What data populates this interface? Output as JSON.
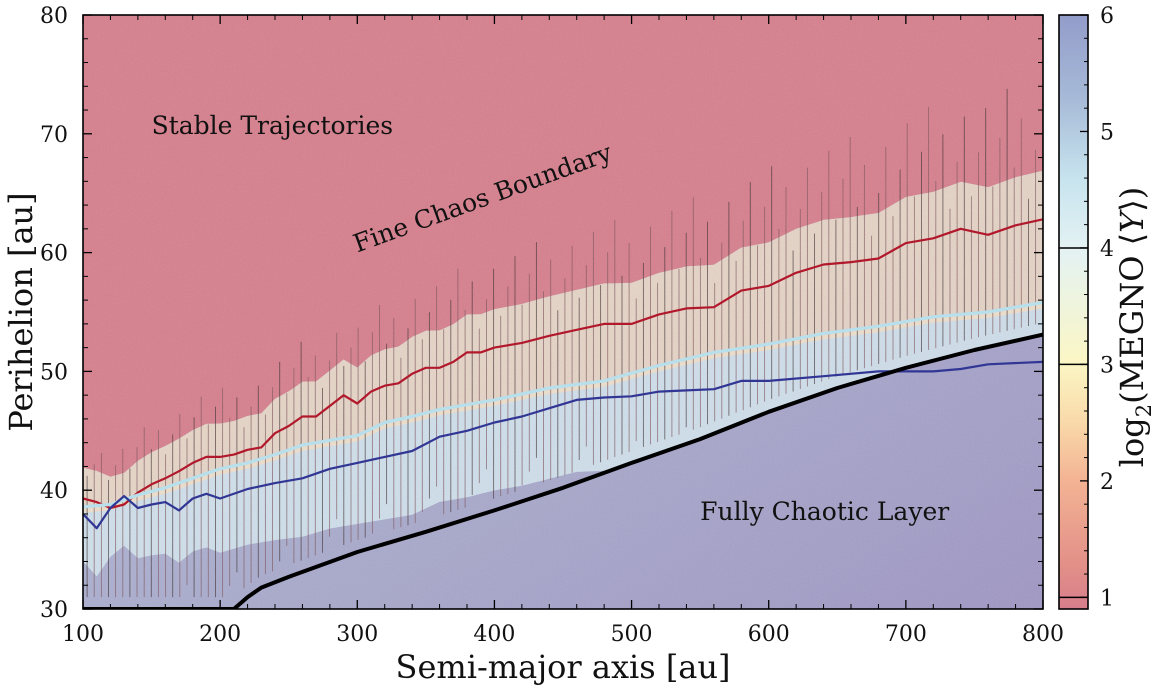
{
  "chart_data": {
    "type": "heatmap",
    "title": "",
    "xlabel": "Semi-major axis [au]",
    "ylabel": "Perihelion [au]",
    "xlim": [
      100,
      800
    ],
    "ylim": [
      30,
      80
    ],
    "x_ticks": [
      100,
      200,
      300,
      400,
      500,
      600,
      700,
      800
    ],
    "y_ticks": [
      30,
      40,
      50,
      60,
      70,
      80
    ],
    "colorbar": {
      "label": "log₂⟨MEGNO ⟨Y⟩⟩",
      "label_parts": {
        "prefix": "log",
        "sub": "2",
        "text": "(MEGNO ⟨",
        "var": "Y",
        "suffix": "⟩)"
      },
      "range": [
        0.9,
        6
      ],
      "ticks": [
        1,
        2,
        3,
        4,
        5,
        6
      ],
      "marked_levels": [
        1,
        3,
        4
      ],
      "colormap_stops": [
        {
          "v": 0.9,
          "color": "#d77e8c"
        },
        {
          "v": 1.3,
          "color": "#e39188"
        },
        {
          "v": 2.0,
          "color": "#f3b394"
        },
        {
          "v": 2.5,
          "color": "#f9d9a9"
        },
        {
          "v": 3.0,
          "color": "#fbf6c4"
        },
        {
          "v": 4.0,
          "color": "#e3f2f4"
        },
        {
          "v": 4.6,
          "color": "#c7e3ee"
        },
        {
          "v": 5.3,
          "color": "#a6b9d7"
        },
        {
          "v": 6.0,
          "color": "#939cca"
        }
      ]
    },
    "annotations": [
      {
        "text": "Stable Trajectories",
        "x": 150,
        "y": 70
      },
      {
        "text": "Fine Chaos Boundary",
        "x": 300,
        "y": 60,
        "angle": 20
      },
      {
        "text": "Fully Chaotic Layer",
        "x": 550,
        "y": 37.5
      }
    ],
    "series": [
      {
        "name": "red contour",
        "color": "#b2182b",
        "x": [
          100,
          110,
          120,
          130,
          140,
          150,
          160,
          170,
          180,
          190,
          200,
          210,
          220,
          230,
          240,
          250,
          260,
          270,
          280,
          290,
          300,
          310,
          320,
          330,
          340,
          350,
          360,
          370,
          380,
          390,
          400,
          420,
          440,
          460,
          480,
          500,
          520,
          540,
          560,
          580,
          600,
          620,
          640,
          660,
          680,
          700,
          720,
          740,
          760,
          780,
          800
        ],
        "y": [
          39.3,
          39.0,
          38.5,
          38.8,
          39.8,
          40.5,
          41.0,
          41.6,
          42.3,
          42.8,
          42.8,
          43.0,
          43.4,
          43.6,
          44.8,
          45.4,
          46.2,
          46.2,
          47.1,
          48.0,
          47.3,
          48.3,
          48.8,
          49.0,
          49.8,
          50.3,
          50.3,
          50.8,
          51.6,
          51.6,
          52.0,
          52.4,
          53.0,
          53.5,
          54.0,
          54.0,
          54.8,
          55.3,
          55.4,
          56.8,
          57.2,
          58.3,
          59.0,
          59.2,
          59.5,
          60.8,
          61.2,
          62.0,
          61.5,
          62.3,
          62.8
        ]
      },
      {
        "name": "light blue contour",
        "color": "#b8dfec",
        "x": [
          100,
          120,
          140,
          160,
          180,
          200,
          220,
          240,
          260,
          280,
          300,
          320,
          340,
          360,
          380,
          400,
          440,
          480,
          520,
          560,
          600,
          640,
          680,
          720,
          760,
          800
        ],
        "y": [
          38.6,
          38.8,
          39.6,
          40.2,
          41.0,
          41.8,
          42.3,
          43.0,
          43.8,
          44.2,
          44.6,
          45.7,
          46.2,
          46.8,
          47.2,
          47.6,
          48.6,
          49.2,
          50.5,
          51.6,
          52.3,
          53.2,
          53.8,
          54.6,
          55.0,
          55.8
        ]
      },
      {
        "name": "dark blue contour",
        "color": "#313695",
        "x": [
          100,
          110,
          120,
          130,
          140,
          150,
          160,
          170,
          180,
          190,
          200,
          220,
          240,
          260,
          280,
          300,
          320,
          340,
          360,
          380,
          400,
          420,
          440,
          460,
          480,
          500,
          520,
          540,
          560,
          580,
          600,
          640,
          680,
          720,
          740,
          760,
          800
        ],
        "y": [
          38.0,
          36.8,
          38.5,
          39.5,
          38.5,
          38.8,
          39.0,
          38.3,
          39.3,
          39.7,
          39.3,
          40.1,
          40.6,
          41.0,
          41.8,
          42.3,
          42.8,
          43.3,
          44.5,
          45.0,
          45.7,
          46.2,
          46.9,
          47.6,
          47.8,
          47.9,
          48.3,
          48.4,
          48.5,
          49.2,
          49.2,
          49.6,
          50.0,
          50.0,
          50.2,
          50.6,
          50.8
        ]
      },
      {
        "name": "black boundary",
        "color": "#000000",
        "x": [
          100,
          150,
          200,
          210,
          220,
          230,
          250,
          300,
          350,
          400,
          450,
          500,
          550,
          600,
          650,
          700,
          750,
          800
        ],
        "y": [
          30.0,
          30.0,
          30.0,
          30.0,
          31.0,
          31.8,
          32.7,
          34.8,
          36.5,
          38.3,
          40.2,
          42.3,
          44.3,
          46.6,
          48.6,
          50.3,
          51.8,
          53.1
        ]
      }
    ]
  }
}
